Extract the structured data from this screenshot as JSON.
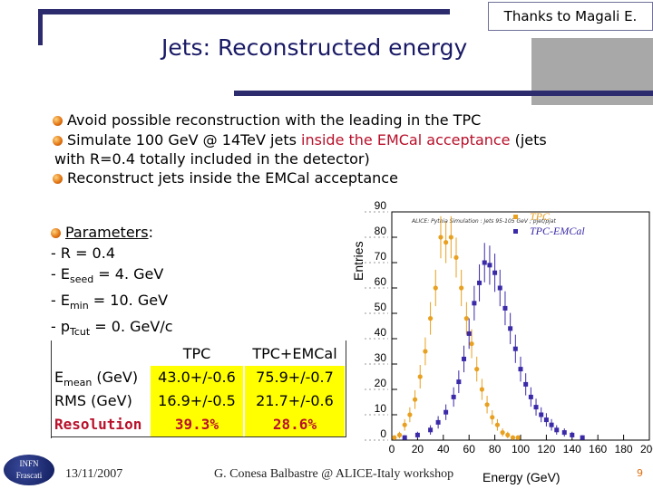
{
  "header": {
    "credit": "Thanks to Magali E.",
    "title": "Jets: Reconstructed energy"
  },
  "bullets": {
    "b1": "Avoid possible reconstruction with the leading in the TPC",
    "b2_pre": "Simulate 100 GeV @ 14TeV jets ",
    "b2_red": "inside the EMCal acceptance",
    "b2_post": " (jets",
    "b3": "with R=0.4 totally included in the detector)",
    "b4": "Reconstruct jets inside the EMCal acceptance"
  },
  "parameters": {
    "heading": "Parameters",
    "colon": ":",
    "r": "- R = 0.4",
    "eseed_pre": "- E",
    "eseed_sub": "seed",
    "eseed_post": " = 4. GeV",
    "emin_pre": "- E",
    "emin_sub": "min",
    "emin_post": " = 10. GeV",
    "pt_pre": "- p",
    "pt_sub": "Tcut",
    "pt_post": " = 0. GeV/c"
  },
  "results_table": {
    "col_tpc": "TPC",
    "col_tpc_emcal": "TPC+EMCal",
    "mean_pre": "E",
    "mean_sub": "mean",
    "mean_post": " (GeV)",
    "mean_tpc": "43.0+/-0.6",
    "mean_emcal": "75.9+/-0.7",
    "rms_label": "RMS (GeV)",
    "rms_tpc": "16.9+/-0.5",
    "rms_emcal": "21.7+/-0.6",
    "res_label": "Resolution",
    "res_tpc": "39.3%",
    "res_emcal": "28.6%"
  },
  "footer": {
    "date": "13/11/2007",
    "author": "G. Conesa Balbastre @ ALICE-Italy workshop",
    "page": "9",
    "logo_line1": "INFN",
    "logo_line2": "Frascati"
  },
  "colors": {
    "tpc": "#e8a020",
    "emcal": "#3a2aa8",
    "accent_red": "#b8102a",
    "title_blue": "#1a1a66"
  },
  "chart_data": {
    "type": "scatter",
    "header": "ALICE: Pythia Simulation : Jets 95-105 GeV ; pjet/pjat",
    "ylabel": "Entries",
    "xlabel": "Energy (GeV)",
    "xlim": [
      0,
      200
    ],
    "ylim": [
      0,
      90
    ],
    "xticks": [
      "0",
      "20",
      "40",
      "60",
      "80",
      "100",
      "120",
      "140",
      "160",
      "180",
      "200"
    ],
    "yticks": [
      "0",
      "10",
      "20",
      "30",
      "40",
      "50",
      "60",
      "70",
      "80",
      "90"
    ],
    "legend": [
      "TPC",
      "TPC-EMCal"
    ],
    "series": [
      {
        "name": "TPC",
        "points": [
          [
            2,
            1
          ],
          [
            6,
            2
          ],
          [
            10,
            6
          ],
          [
            14,
            10
          ],
          [
            18,
            16
          ],
          [
            22,
            25
          ],
          [
            26,
            35
          ],
          [
            30,
            48
          ],
          [
            34,
            60
          ],
          [
            38,
            80
          ],
          [
            42,
            78
          ],
          [
            46,
            80
          ],
          [
            50,
            72
          ],
          [
            54,
            60
          ],
          [
            58,
            48
          ],
          [
            62,
            38
          ],
          [
            66,
            28
          ],
          [
            70,
            20
          ],
          [
            74,
            14
          ],
          [
            78,
            9
          ],
          [
            82,
            6
          ],
          [
            86,
            3
          ],
          [
            90,
            2
          ],
          [
            94,
            1
          ],
          [
            98,
            1
          ]
        ]
      },
      {
        "name": "TPC-EMCal",
        "points": [
          [
            10,
            1
          ],
          [
            20,
            2
          ],
          [
            30,
            4
          ],
          [
            36,
            7
          ],
          [
            42,
            11
          ],
          [
            48,
            17
          ],
          [
            52,
            23
          ],
          [
            56,
            32
          ],
          [
            60,
            42
          ],
          [
            64,
            54
          ],
          [
            68,
            62
          ],
          [
            72,
            70
          ],
          [
            76,
            69
          ],
          [
            80,
            66
          ],
          [
            84,
            60
          ],
          [
            88,
            52
          ],
          [
            92,
            44
          ],
          [
            96,
            36
          ],
          [
            100,
            28
          ],
          [
            104,
            22
          ],
          [
            108,
            17
          ],
          [
            112,
            13
          ],
          [
            116,
            10
          ],
          [
            120,
            8
          ],
          [
            124,
            6
          ],
          [
            128,
            4
          ],
          [
            134,
            3
          ],
          [
            140,
            2
          ],
          [
            148,
            1
          ]
        ]
      }
    ]
  }
}
